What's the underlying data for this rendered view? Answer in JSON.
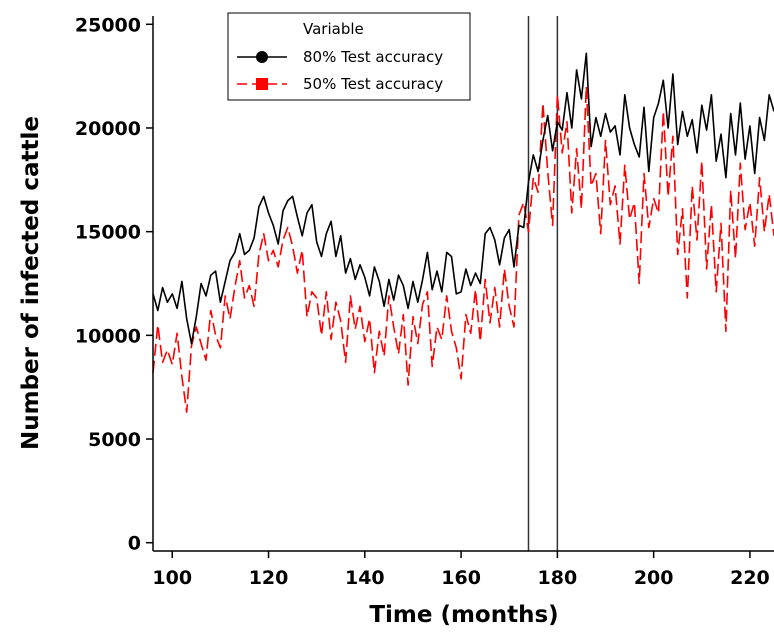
{
  "chart_data": {
    "type": "line",
    "xlabel": "Time (months)",
    "ylabel": "Number of infected cattle",
    "xlim": [
      96,
      225
    ],
    "ylim": [
      -400,
      25400
    ],
    "xticks": [
      100,
      120,
      140,
      160,
      180,
      200,
      220
    ],
    "yticks": [
      0,
      5000,
      10000,
      15000,
      20000,
      25000
    ],
    "xtick_labels": [
      "100",
      "120",
      "140",
      "160",
      "180",
      "200",
      "220"
    ],
    "ytick_labels": [
      "0",
      "5000",
      "10000",
      "15000",
      "20000",
      "25000"
    ],
    "grid": false,
    "legend": {
      "title": "Variable",
      "position": "top-left",
      "entries": [
        "80% Test accuracy",
        "50% Test accuracy"
      ]
    },
    "vertical_lines": [
      174,
      180
    ],
    "series": [
      {
        "name": "80% Test accuracy",
        "color": "#000000",
        "marker": "circle",
        "dash": "solid",
        "x": [
          96,
          97,
          98,
          99,
          100,
          101,
          102,
          103,
          104,
          105,
          106,
          107,
          108,
          109,
          110,
          111,
          112,
          113,
          114,
          115,
          116,
          117,
          118,
          119,
          120,
          121,
          122,
          123,
          124,
          125,
          126,
          127,
          128,
          129,
          130,
          131,
          132,
          133,
          134,
          135,
          136,
          137,
          138,
          139,
          140,
          141,
          142,
          143,
          144,
          145,
          146,
          147,
          148,
          149,
          150,
          151,
          152,
          153,
          154,
          155,
          156,
          157,
          158,
          159,
          160,
          161,
          162,
          163,
          164,
          165,
          166,
          167,
          168,
          169,
          170,
          171,
          172,
          173,
          174,
          175,
          176,
          177,
          178,
          179,
          180,
          181,
          182,
          183,
          184,
          185,
          186,
          187,
          188,
          189,
          190,
          191,
          192,
          193,
          194,
          195,
          196,
          197,
          198,
          199,
          200,
          201,
          202,
          203,
          204,
          205,
          206,
          207,
          208,
          209,
          210,
          211,
          212,
          213,
          214,
          215,
          216,
          217,
          218,
          219,
          220,
          221,
          222,
          223,
          224,
          225
        ],
        "y": [
          12000,
          11200,
          12300,
          11600,
          12000,
          11300,
          12600,
          10800,
          9600,
          10900,
          12500,
          11900,
          12900,
          13100,
          11600,
          12600,
          13600,
          14000,
          14900,
          13900,
          14100,
          14700,
          16200,
          16700,
          15900,
          15300,
          14400,
          16000,
          16500,
          16700,
          15700,
          14800,
          15900,
          16300,
          14500,
          13800,
          14900,
          15500,
          13800,
          14800,
          13000,
          13700,
          12700,
          13400,
          12800,
          11900,
          13300,
          12600,
          11400,
          12700,
          11700,
          12900,
          12400,
          11300,
          12600,
          11600,
          12700,
          14000,
          12200,
          13100,
          12100,
          14000,
          13800,
          12000,
          12100,
          13200,
          12400,
          13000,
          12500,
          14900,
          15200,
          14600,
          13400,
          14700,
          15100,
          13300,
          15300,
          15200,
          17400,
          18700,
          17900,
          19400,
          20600,
          18900,
          20300,
          19900,
          21700,
          20000,
          22800,
          21400,
          23600,
          19100,
          20500,
          19600,
          20700,
          19800,
          20100,
          18700,
          21600,
          20000,
          19200,
          18600,
          21000,
          17900,
          20500,
          21200,
          22300,
          20000,
          22600,
          19200,
          20800,
          19600,
          20400,
          18800,
          21100,
          19900,
          21600,
          18400,
          19700,
          17600,
          20700,
          18700,
          21200,
          18500,
          20100,
          17800,
          20500,
          19400,
          21600,
          20800
        ]
      },
      {
        "name": "50% Test accuracy",
        "color": "#ff0000",
        "marker": "square",
        "dash": "dashed",
        "x": [
          96,
          97,
          98,
          99,
          100,
          101,
          102,
          103,
          104,
          105,
          106,
          107,
          108,
          109,
          110,
          111,
          112,
          113,
          114,
          115,
          116,
          117,
          118,
          119,
          120,
          121,
          122,
          123,
          124,
          125,
          126,
          127,
          128,
          129,
          130,
          131,
          132,
          133,
          134,
          135,
          136,
          137,
          138,
          139,
          140,
          141,
          142,
          143,
          144,
          145,
          146,
          147,
          148,
          149,
          150,
          151,
          152,
          153,
          154,
          155,
          156,
          157,
          158,
          159,
          160,
          161,
          162,
          163,
          164,
          165,
          166,
          167,
          168,
          169,
          170,
          171,
          172,
          173,
          174,
          175,
          176,
          177,
          178,
          179,
          180,
          181,
          182,
          183,
          184,
          185,
          186,
          187,
          188,
          189,
          190,
          191,
          192,
          193,
          194,
          195,
          196,
          197,
          198,
          199,
          200,
          201,
          202,
          203,
          204,
          205,
          206,
          207,
          208,
          209,
          210,
          211,
          212,
          213,
          214,
          215,
          216,
          217,
          218,
          219,
          220,
          221,
          222,
          223,
          224,
          225
        ],
        "y": [
          8200,
          10500,
          8700,
          9300,
          8600,
          10100,
          8000,
          6300,
          9500,
          10400,
          9600,
          8800,
          11200,
          10000,
          9400,
          11900,
          10800,
          12300,
          13600,
          11800,
          12400,
          11400,
          13900,
          14900,
          13600,
          14100,
          13300,
          14600,
          15200,
          14300,
          13000,
          14100,
          10900,
          12100,
          11800,
          10000,
          12100,
          9800,
          11600,
          10700,
          8700,
          11900,
          10300,
          11400,
          9700,
          10800,
          8200,
          10200,
          9000,
          11900,
          10400,
          9100,
          11000,
          7600,
          10900,
          9600,
          11500,
          12100,
          8500,
          10400,
          9800,
          11900,
          10200,
          9400,
          7900,
          11000,
          10100,
          12200,
          9700,
          12700,
          10600,
          12300,
          10400,
          13200,
          11400,
          10400,
          15800,
          16400,
          15000,
          17600,
          16900,
          21200,
          17900,
          15300,
          21600,
          18800,
          20300,
          15900,
          19000,
          16100,
          22000,
          17200,
          17800,
          14900,
          19400,
          16300,
          17200,
          14400,
          18200,
          15600,
          16400,
          12500,
          17800,
          15200,
          16600,
          15900,
          20800,
          16700,
          19600,
          13900,
          16100,
          11800,
          17200,
          14600,
          18400,
          13200,
          16300,
          12100,
          15400,
          10200,
          17000,
          13700,
          18300,
          15100,
          16400,
          14300,
          17600,
          15000,
          16800,
          14800
        ]
      }
    ]
  }
}
